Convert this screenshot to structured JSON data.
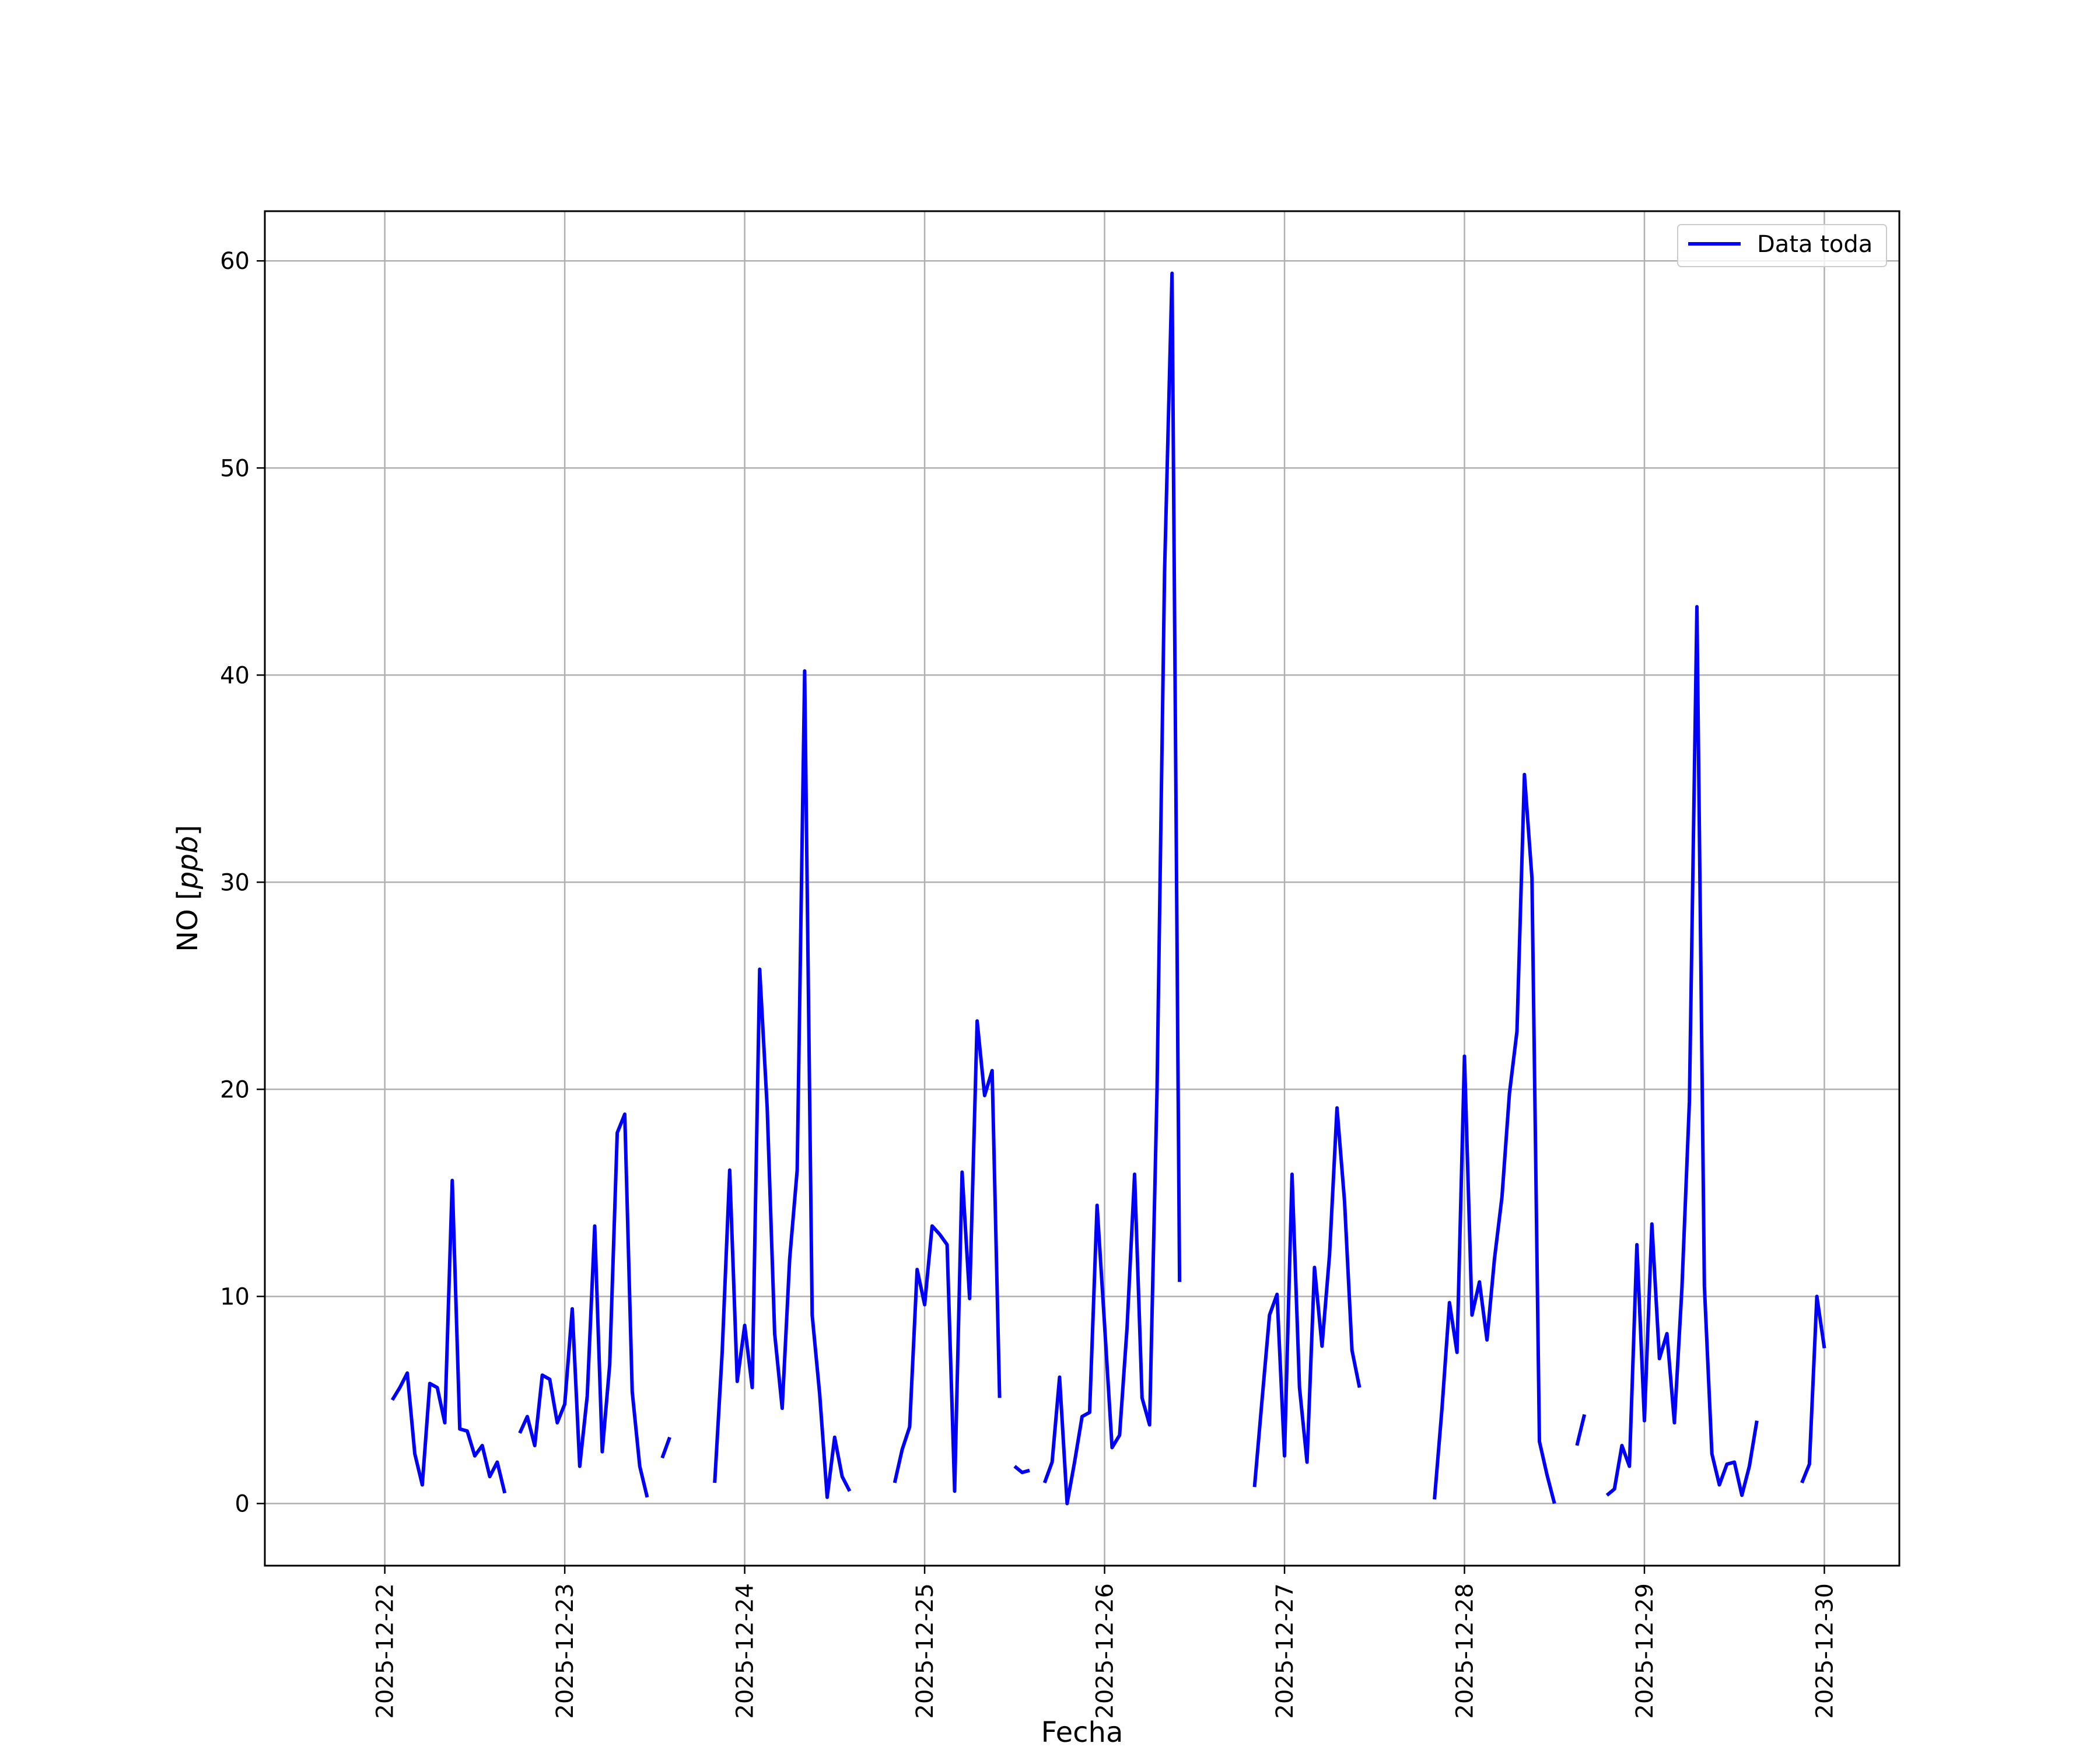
{
  "chart_data": {
    "type": "line",
    "title": "",
    "xlabel": "Fecha",
    "ylabel_main": "NO [",
    "ylabel_unit": "ppb",
    "ylabel_close": "]",
    "x_tick_labels": [
      "2025-12-22",
      "2025-12-23",
      "2025-12-24",
      "2025-12-25",
      "2025-12-26",
      "2025-12-27",
      "2025-12-28",
      "2025-12-29",
      "2025-12-30"
    ],
    "y_ticks": [
      0,
      10,
      20,
      30,
      40,
      50,
      60
    ],
    "xlim": [
      "2025-12-21T08:00",
      "2025-12-30T10:00"
    ],
    "ylim": [
      -3,
      62.4
    ],
    "grid": true,
    "legend_position": "top-right",
    "series": [
      {
        "name": "Data toda",
        "color": "#0000ff",
        "segments": [
          [
            [
              "2025-12-22T01:00",
              5.0
            ],
            [
              "2025-12-22T02:00",
              5.6
            ],
            [
              "2025-12-22T03:00",
              6.3
            ],
            [
              "2025-12-22T04:00",
              2.4
            ],
            [
              "2025-12-22T05:00",
              0.9
            ],
            [
              "2025-12-22T06:00",
              5.8
            ],
            [
              "2025-12-22T07:00",
              5.6
            ],
            [
              "2025-12-22T08:00",
              3.9
            ],
            [
              "2025-12-22T09:00",
              15.6
            ],
            [
              "2025-12-22T10:00",
              3.6
            ],
            [
              "2025-12-22T11:00",
              3.5
            ],
            [
              "2025-12-22T12:00",
              2.3
            ],
            [
              "2025-12-22T13:00",
              2.8
            ],
            [
              "2025-12-22T14:00",
              1.3
            ],
            [
              "2025-12-22T15:00",
              2.0
            ],
            [
              "2025-12-22T16:00",
              0.5
            ]
          ],
          [
            [
              "2025-12-22T18:00",
              3.4
            ],
            [
              "2025-12-22T19:00",
              4.2
            ],
            [
              "2025-12-22T20:00",
              2.8
            ],
            [
              "2025-12-22T21:00",
              6.2
            ],
            [
              "2025-12-22T22:00",
              6.0
            ],
            [
              "2025-12-22T23:00",
              3.9
            ],
            [
              "2025-12-23T00:00",
              4.8
            ],
            [
              "2025-12-23T01:00",
              9.4
            ],
            [
              "2025-12-23T02:00",
              1.8
            ],
            [
              "2025-12-23T03:00",
              5.2
            ],
            [
              "2025-12-23T04:00",
              13.4
            ],
            [
              "2025-12-23T05:00",
              2.5
            ],
            [
              "2025-12-23T06:00",
              6.7
            ],
            [
              "2025-12-23T07:00",
              17.9
            ],
            [
              "2025-12-23T08:00",
              18.8
            ],
            [
              "2025-12-23T09:00",
              5.4
            ],
            [
              "2025-12-23T10:00",
              1.8
            ],
            [
              "2025-12-23T11:00",
              0.3
            ]
          ],
          [
            [
              "2025-12-23T13:00",
              2.2
            ],
            [
              "2025-12-23T14:00",
              3.2
            ]
          ],
          [
            [
              "2025-12-23T20:00",
              1.0
            ],
            [
              "2025-12-23T21:00",
              7.3
            ],
            [
              "2025-12-23T22:00",
              16.1
            ],
            [
              "2025-12-23T23:00",
              5.9
            ],
            [
              "2025-12-24T00:00",
              8.6
            ],
            [
              "2025-12-24T01:00",
              5.6
            ],
            [
              "2025-12-24T02:00",
              25.8
            ],
            [
              "2025-12-24T03:00",
              19.1
            ],
            [
              "2025-12-24T04:00",
              8.2
            ],
            [
              "2025-12-24T05:00",
              4.6
            ],
            [
              "2025-12-24T06:00",
              11.8
            ],
            [
              "2025-12-24T07:00",
              16.1
            ],
            [
              "2025-12-24T08:00",
              40.2
            ],
            [
              "2025-12-24T09:00",
              9.1
            ],
            [
              "2025-12-24T10:00",
              5.3
            ],
            [
              "2025-12-24T11:00",
              0.3
            ],
            [
              "2025-12-24T12:00",
              3.2
            ],
            [
              "2025-12-24T13:00",
              1.3
            ],
            [
              "2025-12-24T14:00",
              0.6
            ]
          ],
          [
            [
              "2025-12-24T20:00",
              1.0
            ],
            [
              "2025-12-24T21:00",
              2.6
            ],
            [
              "2025-12-24T22:00",
              3.7
            ],
            [
              "2025-12-24T23:00",
              11.3
            ],
            [
              "2025-12-25T00:00",
              9.6
            ],
            [
              "2025-12-25T01:00",
              13.4
            ],
            [
              "2025-12-25T02:00",
              13.0
            ],
            [
              "2025-12-25T03:00",
              12.5
            ],
            [
              "2025-12-25T04:00",
              0.6
            ],
            [
              "2025-12-25T05:00",
              16.0
            ],
            [
              "2025-12-25T06:00",
              9.9
            ],
            [
              "2025-12-25T07:00",
              23.3
            ],
            [
              "2025-12-25T08:00",
              19.7
            ],
            [
              "2025-12-25T09:00",
              20.9
            ],
            [
              "2025-12-25T10:00",
              5.1
            ]
          ],
          [
            [
              "2025-12-25T12:00",
              1.8
            ],
            [
              "2025-12-25T13:00",
              1.5
            ],
            [
              "2025-12-25T14:00",
              1.6
            ]
          ],
          [
            [
              "2025-12-25T16:00",
              1.0
            ],
            [
              "2025-12-25T17:00",
              2.0
            ],
            [
              "2025-12-25T18:00",
              6.1
            ],
            [
              "2025-12-25T19:00",
              0.0
            ],
            [
              "2025-12-25T20:00",
              2.0
            ],
            [
              "2025-12-25T21:00",
              4.2
            ],
            [
              "2025-12-25T22:00",
              4.4
            ],
            [
              "2025-12-25T23:00",
              14.4
            ],
            [
              "2025-12-26T00:00",
              8.6
            ],
            [
              "2025-12-26T01:00",
              2.7
            ],
            [
              "2025-12-26T02:00",
              3.3
            ],
            [
              "2025-12-26T03:00",
              8.5
            ],
            [
              "2025-12-26T04:00",
              15.9
            ],
            [
              "2025-12-26T05:00",
              5.1
            ],
            [
              "2025-12-26T06:00",
              3.8
            ],
            [
              "2025-12-26T07:00",
              20.0
            ],
            [
              "2025-12-26T08:00",
              45.0
            ],
            [
              "2025-12-26T09:00",
              59.4
            ],
            [
              "2025-12-26T10:00",
              10.7
            ]
          ],
          [
            [
              "2025-12-26T20:00",
              0.8
            ],
            [
              "2025-12-26T21:00",
              5.0
            ],
            [
              "2025-12-26T22:00",
              9.1
            ],
            [
              "2025-12-26T23:00",
              10.1
            ],
            [
              "2025-12-27T00:00",
              2.3
            ],
            [
              "2025-12-27T01:00",
              15.9
            ],
            [
              "2025-12-27T02:00",
              5.6
            ],
            [
              "2025-12-27T03:00",
              2.0
            ],
            [
              "2025-12-27T04:00",
              11.4
            ],
            [
              "2025-12-27T05:00",
              7.6
            ],
            [
              "2025-12-27T06:00",
              12.0
            ],
            [
              "2025-12-27T07:00",
              19.1
            ],
            [
              "2025-12-27T08:00",
              14.6
            ],
            [
              "2025-12-27T09:00",
              7.4
            ],
            [
              "2025-12-27T10:00",
              5.6
            ]
          ],
          [
            [
              "2025-12-27T20:00",
              0.2
            ],
            [
              "2025-12-27T21:00",
              4.6
            ],
            [
              "2025-12-27T22:00",
              9.7
            ],
            [
              "2025-12-27T23:00",
              7.3
            ],
            [
              "2025-12-28T00:00",
              21.6
            ],
            [
              "2025-12-28T01:00",
              9.1
            ],
            [
              "2025-12-28T02:00",
              10.7
            ],
            [
              "2025-12-28T03:00",
              7.9
            ],
            [
              "2025-12-28T04:00",
              11.8
            ],
            [
              "2025-12-28T05:00",
              14.8
            ],
            [
              "2025-12-28T06:00",
              19.8
            ],
            [
              "2025-12-28T07:00",
              22.8
            ],
            [
              "2025-12-28T08:00",
              35.2
            ],
            [
              "2025-12-28T09:00",
              30.2
            ],
            [
              "2025-12-28T10:00",
              3.0
            ],
            [
              "2025-12-28T11:00",
              1.4
            ],
            [
              "2025-12-28T12:00",
              0.0
            ]
          ],
          [
            [
              "2025-12-28T15:00",
              2.8
            ],
            [
              "2025-12-28T16:00",
              4.3
            ]
          ],
          [
            [
              "2025-12-28T19:00",
              0.4
            ],
            [
              "2025-12-28T20:00",
              0.7
            ],
            [
              "2025-12-28T21:00",
              2.8
            ],
            [
              "2025-12-28T22:00",
              1.8
            ],
            [
              "2025-12-28T23:00",
              12.5
            ],
            [
              "2025-12-29T00:00",
              4.0
            ],
            [
              "2025-12-29T01:00",
              13.5
            ],
            [
              "2025-12-29T02:00",
              7.0
            ],
            [
              "2025-12-29T03:00",
              8.2
            ],
            [
              "2025-12-29T04:00",
              3.9
            ],
            [
              "2025-12-29T05:00",
              10.4
            ],
            [
              "2025-12-29T06:00",
              19.4
            ],
            [
              "2025-12-29T07:00",
              43.3
            ],
            [
              "2025-12-29T08:00",
              10.5
            ],
            [
              "2025-12-29T09:00",
              2.4
            ],
            [
              "2025-12-29T10:00",
              0.9
            ],
            [
              "2025-12-29T11:00",
              1.9
            ],
            [
              "2025-12-29T12:00",
              2.0
            ],
            [
              "2025-12-29T13:00",
              0.4
            ],
            [
              "2025-12-29T14:00",
              1.8
            ],
            [
              "2025-12-29T15:00",
              4.0
            ]
          ],
          [
            [
              "2025-12-29T21:00",
              1.0
            ],
            [
              "2025-12-29T22:00",
              1.9
            ],
            [
              "2025-12-29T23:00",
              10.0
            ],
            [
              "2025-12-30T00:00",
              7.5
            ]
          ]
        ]
      }
    ]
  }
}
